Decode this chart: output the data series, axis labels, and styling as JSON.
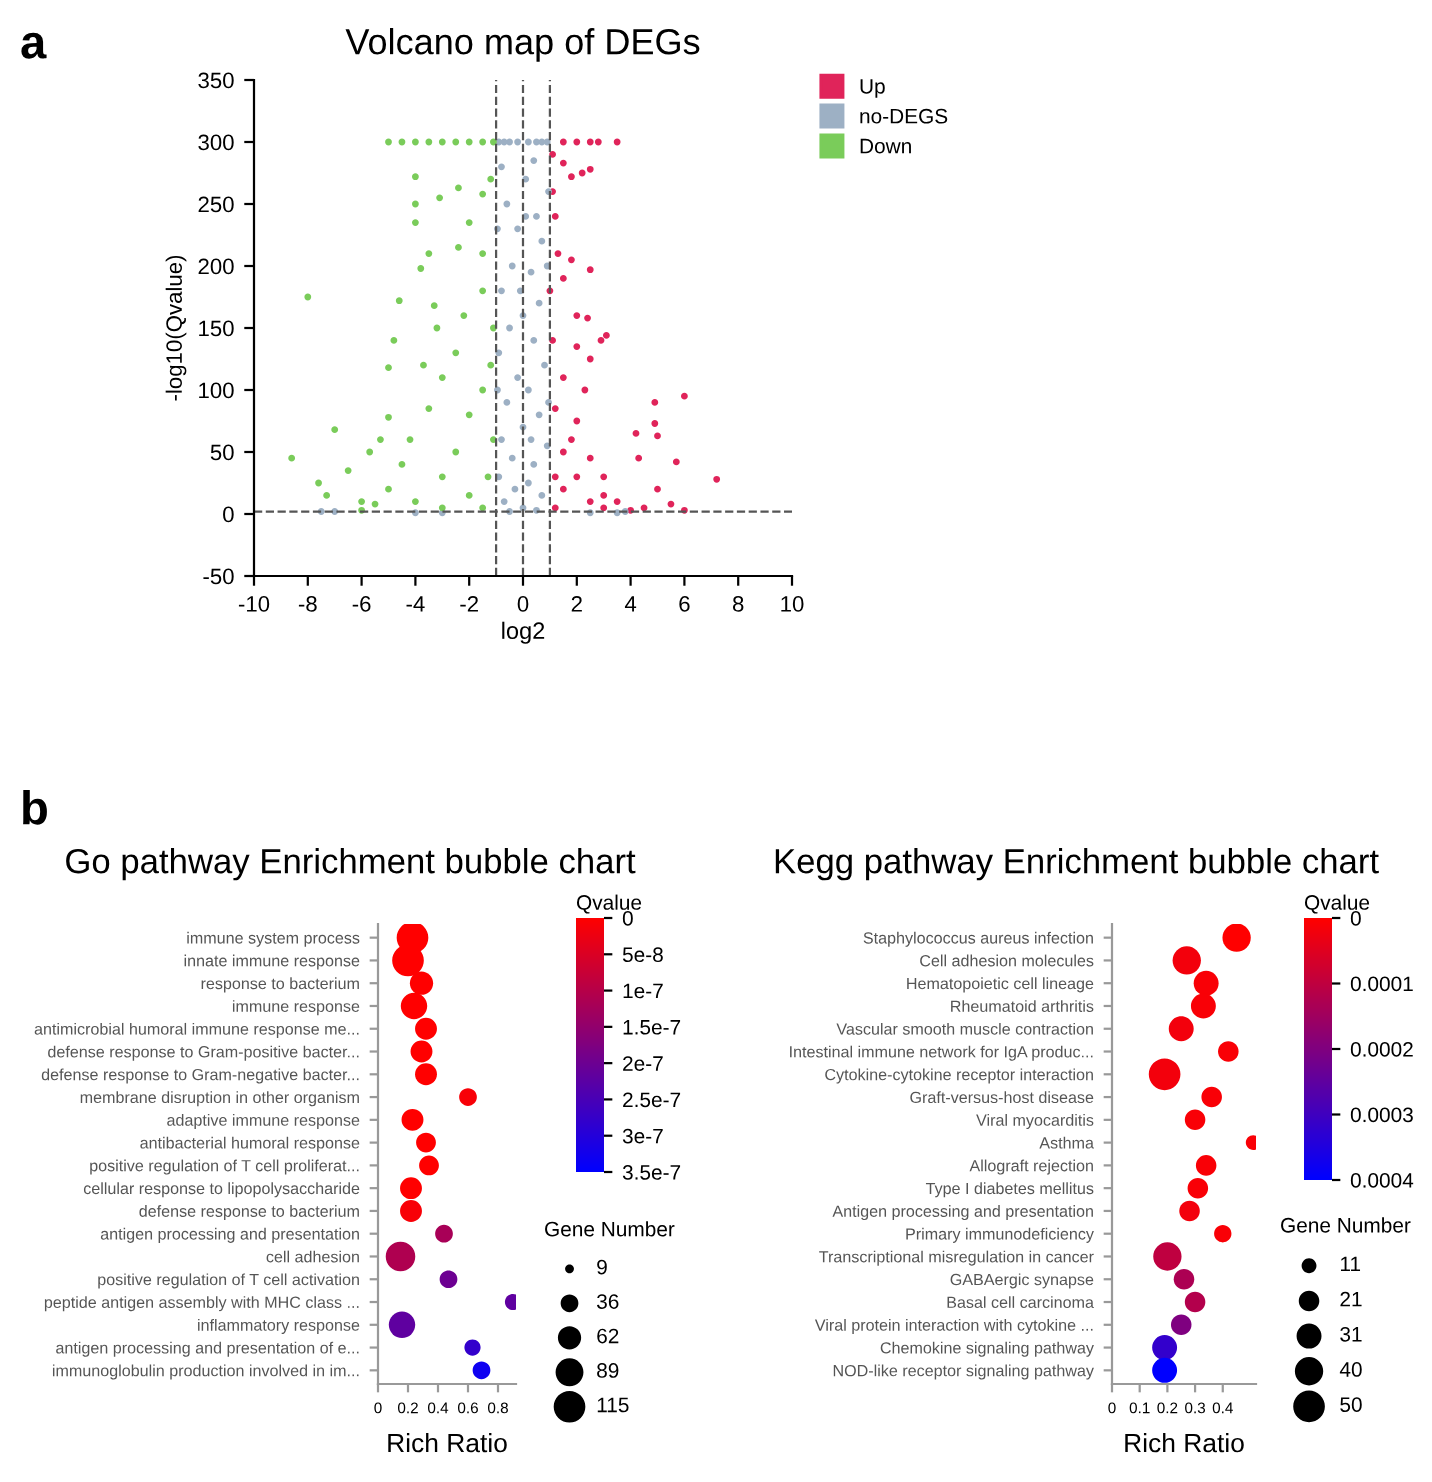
{
  "chart_data": [
    {
      "type": "scatter",
      "title": "Volcano map of DEGs",
      "xlabel": "log2",
      "ylabel": "-log10(Qvalue)",
      "annotations": [
        "a"
      ],
      "xlim": [
        -10,
        10
      ],
      "ylim": [
        -50,
        350
      ],
      "xticks": [
        -10,
        -8,
        -6,
        -4,
        -2,
        0,
        2,
        4,
        6,
        8,
        10
      ],
      "yticks": [
        -50,
        0,
        50,
        100,
        150,
        200,
        250,
        300,
        350
      ],
      "grid": false,
      "legend": "top right",
      "marker": "circle",
      "ref_lines": [
        {
          "axis": "x",
          "value": -1,
          "color": "#555555",
          "line_style": "dashed"
        },
        {
          "axis": "x",
          "value": 0,
          "color": "#555555",
          "line_style": "dashed"
        },
        {
          "axis": "x",
          "value": 1,
          "color": "#555555",
          "line_style": "dashed"
        },
        {
          "axis": "y",
          "value": 2,
          "color": "#555555",
          "line_style": "dashed"
        }
      ],
      "series": [
        {
          "name": "Up",
          "color": "#e0245a",
          "x": [
            1.5,
            2.0,
            2.5,
            2.8,
            3.5,
            1.1,
            1.5,
            2.2,
            1.8,
            2.5,
            1.1,
            1.3,
            1.5,
            2.5,
            1.8,
            2.0,
            2.4,
            3.1,
            2.9,
            2.0,
            2.5,
            1.5,
            2.3,
            1.2,
            2.0,
            1.5,
            2.5,
            3.0,
            1.5,
            2.5,
            3.0,
            1.2,
            3.5,
            4.0,
            4.5,
            4.3,
            4.2,
            4.9,
            4.9,
            5.0,
            6.0,
            5.7,
            7.2,
            5.0,
            5.5,
            6.0,
            1.1,
            1.2,
            1.8,
            2.0,
            3.0,
            1.0,
            1.2
          ],
          "values": [
            300,
            300,
            300,
            300,
            300,
            290,
            283,
            275,
            272,
            278,
            260,
            210,
            190,
            197,
            205,
            160,
            158,
            144,
            140,
            135,
            125,
            110,
            100,
            85,
            75,
            50,
            45,
            30,
            20,
            10,
            5,
            5,
            10,
            3,
            5,
            45,
            65,
            73,
            90,
            63,
            95,
            42,
            28,
            20,
            8,
            3,
            140,
            30,
            60,
            30,
            15,
            180,
            240
          ]
        },
        {
          "name": "no-DEGS",
          "color": "#9db0c4",
          "x": [
            -0.9,
            -0.5,
            -0.2,
            0.2,
            0.5,
            0.9,
            -0.8,
            0.4,
            0.1,
            -0.6,
            0.5,
            -0.2,
            0.7,
            -0.4,
            0.3,
            -0.8,
            0.6,
            0.0,
            -0.5,
            0.4,
            -0.9,
            0.8,
            -0.2,
            0.2,
            -0.6,
            0.6,
            0.0,
            -0.8,
            0.9,
            -0.4,
            0.4,
            -0.9,
            0.2,
            -0.3,
            0.7,
            -0.7,
            0.0,
            0.5,
            -0.5,
            2.5,
            3.5,
            -3.0,
            -4.0,
            -7.5,
            -7.0,
            3.8,
            0.95,
            -0.95,
            0.9,
            -0.95,
            0.95,
            0.1,
            -0.1,
            0.3,
            -0.7,
            0.7
          ],
          "values": [
            300,
            300,
            300,
            300,
            300,
            300,
            280,
            285,
            270,
            250,
            240,
            230,
            220,
            200,
            195,
            180,
            170,
            160,
            150,
            140,
            130,
            120,
            110,
            100,
            90,
            80,
            70,
            60,
            55,
            45,
            40,
            30,
            25,
            20,
            15,
            10,
            5,
            3,
            2,
            1,
            1,
            1,
            1,
            2,
            2,
            2,
            260,
            230,
            200,
            100,
            90,
            240,
            180,
            60,
            300,
            300
          ]
        },
        {
          "name": "Down",
          "color": "#7acc5a",
          "x": [
            -8.0,
            -8.6,
            -7.0,
            -7.6,
            -7.3,
            -6.0,
            -5.3,
            -5.0,
            -5.0,
            -4.8,
            -4.6,
            -4.0,
            -4.0,
            -4.0,
            -3.8,
            -3.5,
            -3.3,
            -3.2,
            -3.1,
            -2.4,
            -2.4,
            -2.0,
            -1.5,
            -1.5,
            -1.2,
            -1.5,
            -2.5,
            -3.0,
            -3.5,
            -4.2,
            -4.5,
            -5.0,
            -5.5,
            -4.0,
            -3.0,
            -2.5,
            -2.0,
            -1.5,
            -1.2,
            -1.1,
            -1.1,
            -1.3,
            -2.0,
            -3.0,
            -1.5,
            -6.0,
            -5.0,
            -4.5,
            -4.0,
            -3.5,
            -3.0,
            -2.5,
            -2.0,
            -1.5,
            -1.1,
            -6.5,
            -5.7,
            -3.7,
            -2.2
          ],
          "values": [
            175,
            45,
            68,
            25,
            15,
            10,
            60,
            78,
            118,
            140,
            172,
            272,
            250,
            235,
            198,
            210,
            168,
            150,
            255,
            263,
            215,
            235,
            210,
            258,
            270,
            180,
            130,
            110,
            85,
            60,
            40,
            20,
            8,
            10,
            30,
            50,
            80,
            100,
            120,
            150,
            60,
            30,
            15,
            5,
            5,
            3,
            300,
            300,
            300,
            300,
            300,
            300,
            300,
            300,
            300,
            35,
            50,
            120,
            160
          ]
        }
      ]
    },
    {
      "type": "bubble",
      "orientation": "horizontal",
      "title": "Go pathway Enrichment bubble chart",
      "xlabel": "Rich Ratio",
      "annotations": [
        "b"
      ],
      "clabel": "Qvalue",
      "legend_title": "Gene Number",
      "categories": [
        "immune system process",
        "innate immune response",
        "response to bacterium",
        "immune response",
        "antimicrobial humoral immune response me...",
        "defense response to Gram-positive bacter...",
        "defense response to Gram-negative bacter...",
        "membrane disruption in other organism",
        "adaptive immune response",
        "antibacterial humoral response",
        "positive regulation of T cell proliferat...",
        "cellular response to lipopolysaccharide",
        "defense response to bacterium",
        "antigen processing and presentation",
        "cell adhesion",
        "positive regulation of T cell activation",
        "peptide antigen assembly with MHC class ...",
        "inflammatory response",
        "antigen processing and presentation of e...",
        "immunoglobulin production involved in im..."
      ],
      "values": [
        0.23,
        0.2,
        0.29,
        0.24,
        0.32,
        0.29,
        0.32,
        0.6,
        0.23,
        0.32,
        0.34,
        0.22,
        0.22,
        0.44,
        0.15,
        0.47,
        0.9,
        0.16,
        0.63,
        0.69
      ],
      "sizes": [
        115,
        115,
        62,
        80,
        55,
        55,
        55,
        36,
        55,
        45,
        45,
        55,
        55,
        36,
        100,
        36,
        30,
        80,
        30,
        36
      ],
      "cvalues": [
        0,
        0,
        0,
        0,
        0,
        0,
        0,
        1e-08,
        0,
        0,
        0,
        0,
        1e-08,
        1.2e-07,
        1.1e-07,
        2e-07,
        2.2e-07,
        2.2e-07,
        2.8e-07,
        3.3e-07
      ],
      "size_legend": [
        9,
        36,
        62,
        89,
        115
      ],
      "clim": [
        0,
        3.5e-07
      ],
      "cticks": [
        {
          "value": 0,
          "label": "0"
        },
        {
          "value": 5e-08,
          "label": "5e-8"
        },
        {
          "value": 1e-07,
          "label": "1e-7"
        },
        {
          "value": 1.5e-07,
          "label": "1.5e-7"
        },
        {
          "value": 2e-07,
          "label": "2e-7"
        },
        {
          "value": 2.5e-07,
          "label": "2.5e-7"
        },
        {
          "value": 3e-07,
          "label": "3e-7"
        },
        {
          "value": 3.5e-07,
          "label": "3.5e-7"
        }
      ],
      "xlim": [
        0,
        0.92
      ],
      "xticks": [
        0,
        0.2,
        0.4,
        0.6,
        0.8
      ],
      "grid": false
    },
    {
      "type": "bubble",
      "orientation": "horizontal",
      "title": "Kegg pathway Enrichment bubble chart",
      "xlabel": "Rich Ratio",
      "clabel": "Qvalue",
      "legend_title": "Gene Number",
      "categories": [
        "Staphylococcus aureus infection",
        "Cell adhesion molecules",
        "Hematopoietic cell lineage",
        "Rheumatoid arthritis",
        "Vascular smooth muscle contraction",
        "Intestinal immune network for IgA produc...",
        "Cytokine-cytokine receptor interaction",
        "Graft-versus-host disease",
        "Viral myocarditis",
        "Asthma",
        "Allograft rejection",
        "Type I diabetes mellitus",
        "Antigen processing and presentation",
        "Primary immunodeficiency",
        "Transcriptional misregulation in cancer",
        "GABAergic synapse",
        "Basal cell carcinoma",
        "Viral protein interaction with cytokine ...",
        "Chemokine signaling pathway",
        "NOD-like receptor signaling pathway"
      ],
      "values": [
        0.45,
        0.27,
        0.34,
        0.33,
        0.25,
        0.42,
        0.19,
        0.36,
        0.3,
        0.51,
        0.34,
        0.31,
        0.28,
        0.4,
        0.2,
        0.26,
        0.3,
        0.25,
        0.19,
        0.19
      ],
      "sizes": [
        40,
        40,
        31,
        31,
        31,
        21,
        50,
        21,
        21,
        11,
        21,
        21,
        21,
        15,
        40,
        21,
        21,
        21,
        31,
        31
      ],
      "cvalues": [
        0,
        2e-05,
        1e-05,
        1e-05,
        2e-05,
        1e-05,
        2e-05,
        1e-05,
        1e-05,
        1e-05,
        1e-05,
        1e-05,
        2e-05,
        1e-05,
        0.0001,
        0.00013,
        0.00012,
        0.0002,
        0.00032,
        0.0004
      ],
      "size_legend": [
        11,
        21,
        31,
        40,
        50
      ],
      "clim": [
        0,
        0.0004
      ],
      "cticks": [
        0,
        0.0001,
        0.0002,
        0.0003,
        0.0004
      ],
      "xlim": [
        0,
        0.52
      ],
      "xticks": [
        0,
        0.1,
        0.2,
        0.3,
        0.4
      ],
      "grid": false
    }
  ]
}
